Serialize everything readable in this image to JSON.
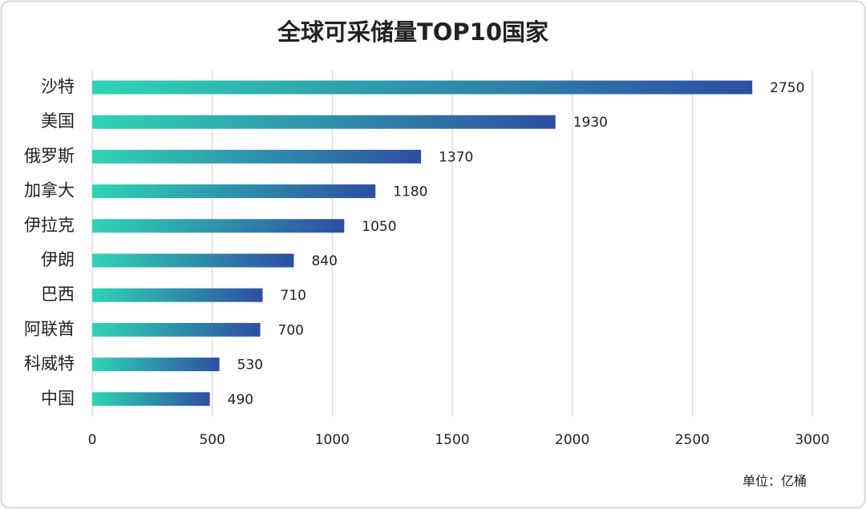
{
  "chart_data": {
    "type": "hbar",
    "title": "全球可采储量TOP10国家",
    "categories": [
      "沙特",
      "美国",
      "俄罗斯",
      "加拿大",
      "伊拉克",
      "伊朗",
      "巴西",
      "阿联酋",
      "科威特",
      "中国"
    ],
    "values": [
      2750,
      1930,
      1370,
      1180,
      1050,
      840,
      710,
      700,
      530,
      490
    ],
    "gradient": [
      "#2fd4b4",
      "#2e4ea2"
    ],
    "xlim": [
      0,
      3000
    ],
    "xticks": [
      0,
      500,
      1000,
      1500,
      2000,
      2500,
      3000
    ],
    "grid": true,
    "unit_label": "单位：亿桶"
  }
}
